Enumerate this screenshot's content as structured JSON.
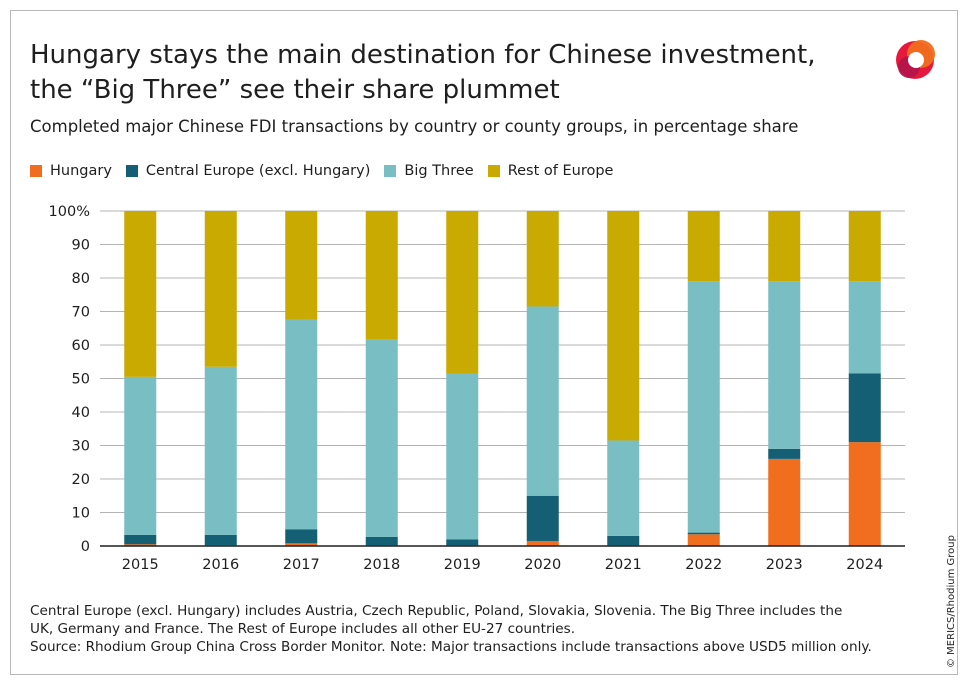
{
  "header": {
    "title": "Hungary stays the main destination for Chinese investment, the “Big Three” see their share plummet",
    "subtitle": "Completed major Chinese FDI transactions by country or county groups, in percentage share"
  },
  "colors": {
    "hungary": "#f06e1e",
    "central_europe": "#145f73",
    "big_three": "#78bec3",
    "rest_of_europe": "#c8aa00",
    "grid": "#b4b4b4",
    "axis": "#1e1e1e"
  },
  "legend": [
    {
      "label": "Hungary",
      "color": "#f06e1e"
    },
    {
      "label": "Central Europe (excl. Hungary)",
      "color": "#145f73"
    },
    {
      "label": "Big Three",
      "color": "#78bec3"
    },
    {
      "label": "Rest of Europe",
      "color": "#c8aa00"
    }
  ],
  "chart_data": {
    "type": "bar",
    "stacked": true,
    "categories": [
      "2015",
      "2016",
      "2017",
      "2018",
      "2019",
      "2020",
      "2021",
      "2022",
      "2023",
      "2024"
    ],
    "series": [
      {
        "name": "Hungary",
        "values": [
          0.5,
          0.3,
          0.8,
          0.2,
          0.2,
          1.5,
          0.2,
          3.5,
          26,
          31
        ]
      },
      {
        "name": "Central Europe (excl. Hungary)",
        "values": [
          2.8,
          3,
          4.2,
          2.5,
          1.8,
          13.5,
          2.8,
          0.5,
          3,
          20.5
        ]
      },
      {
        "name": "Big Three",
        "values": [
          47.2,
          50.2,
          62.5,
          58.9,
          49.5,
          56.5,
          28.5,
          75,
          50,
          27.5
        ]
      },
      {
        "name": "Rest of Europe",
        "values": [
          49.5,
          46.5,
          32.5,
          38.4,
          48.5,
          28.5,
          68.5,
          21,
          21,
          21
        ]
      }
    ],
    "y_ticks": [
      "0",
      "10",
      "20",
      "30",
      "40",
      "50",
      "60",
      "70",
      "80",
      "90",
      "100%"
    ],
    "ylim": [
      0,
      100
    ],
    "title": "Hungary stays the main destination for Chinese investment, the “Big Three” see their share plummet",
    "xlabel": "",
    "ylabel": "",
    "grid": true,
    "legend_position": "top-left"
  },
  "footer": {
    "notes": [
      "Central Europe (excl. Hungary) includes Austria, Czech Republic, Poland, Slovakia, Slovenia. The Big Three includes the",
      "UK, Germany and France. The Rest of Europe includes all other EU-27 countries.",
      "Source: Rhodium Group China Cross Border Monitor. Note: Major transactions include transactions above USD5 million only."
    ],
    "credit": "© MERICS/Rhodium Group"
  }
}
